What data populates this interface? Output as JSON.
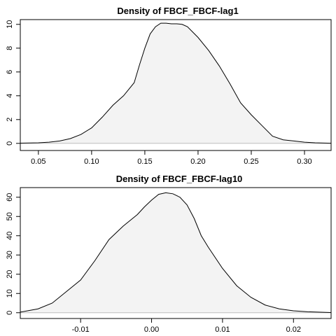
{
  "chart_data": [
    {
      "type": "area",
      "title": "Density of FBCF_FBCF-lag1",
      "xlim": [
        0.033,
        0.325
      ],
      "ylim": [
        -0.6,
        10.4
      ],
      "x_ticks": [
        0.05,
        0.1,
        0.15,
        0.2,
        0.25,
        0.3
      ],
      "x_tick_labels": [
        "0.05",
        "0.10",
        "0.15",
        "0.20",
        "0.25",
        "0.30"
      ],
      "y_ticks": [
        0,
        2,
        4,
        6,
        8,
        10
      ],
      "y_tick_labels": [
        "0",
        "2",
        "4",
        "6",
        "8",
        "10"
      ],
      "fill_color": "#f3f3f3",
      "line_color": "#000000",
      "baseline_color": "#bebebe",
      "series": [
        {
          "x": [
            0.033,
            0.05,
            0.06,
            0.07,
            0.08,
            0.09,
            0.1,
            0.11,
            0.12,
            0.13,
            0.14,
            0.145,
            0.15,
            0.155,
            0.16,
            0.165,
            0.17,
            0.175,
            0.18,
            0.185,
            0.19,
            0.2,
            0.21,
            0.22,
            0.23,
            0.24,
            0.25,
            0.26,
            0.27,
            0.28,
            0.29,
            0.3,
            0.31,
            0.325
          ],
          "y": [
            0.02,
            0.05,
            0.1,
            0.2,
            0.4,
            0.75,
            1.3,
            2.2,
            3.2,
            4.0,
            5.1,
            6.6,
            8.0,
            9.2,
            9.8,
            10.1,
            10.1,
            10.05,
            10.05,
            10.0,
            9.8,
            8.9,
            7.8,
            6.5,
            5.0,
            3.4,
            2.4,
            1.5,
            0.6,
            0.3,
            0.2,
            0.1,
            0.05,
            0.01
          ]
        }
      ]
    },
    {
      "type": "area",
      "title": "Density of FBCF_FBCF-lag10",
      "xlim": [
        -0.0185,
        0.0253
      ],
      "ylim": [
        -3.0,
        65.0
      ],
      "x_ticks": [
        -0.01,
        0.0,
        0.01,
        0.02
      ],
      "x_tick_labels": [
        "-0.01",
        "0.00",
        "0.01",
        "0.02"
      ],
      "y_ticks": [
        0,
        10,
        20,
        30,
        40,
        50,
        60
      ],
      "y_tick_labels": [
        "0",
        "10",
        "20",
        "30",
        "40",
        "50",
        "60"
      ],
      "fill_color": "#f3f3f3",
      "line_color": "#000000",
      "baseline_color": "#bebebe",
      "series": [
        {
          "x": [
            -0.0185,
            -0.016,
            -0.014,
            -0.012,
            -0.01,
            -0.008,
            -0.006,
            -0.004,
            -0.003,
            -0.002,
            -0.001,
            0.0,
            0.001,
            0.002,
            0.003,
            0.004,
            0.005,
            0.006,
            0.007,
            0.008,
            0.01,
            0.012,
            0.014,
            0.016,
            0.018,
            0.02,
            0.022,
            0.0253
          ],
          "y": [
            0.3,
            2.0,
            5.0,
            11.0,
            17.0,
            27.0,
            38.0,
            45.0,
            48.0,
            51.0,
            55.0,
            58.5,
            61.5,
            62.3,
            61.8,
            60.0,
            56.0,
            49.0,
            40.0,
            34.0,
            23.0,
            14.0,
            8.0,
            4.0,
            2.0,
            1.0,
            0.5,
            0.1
          ]
        }
      ]
    }
  ]
}
